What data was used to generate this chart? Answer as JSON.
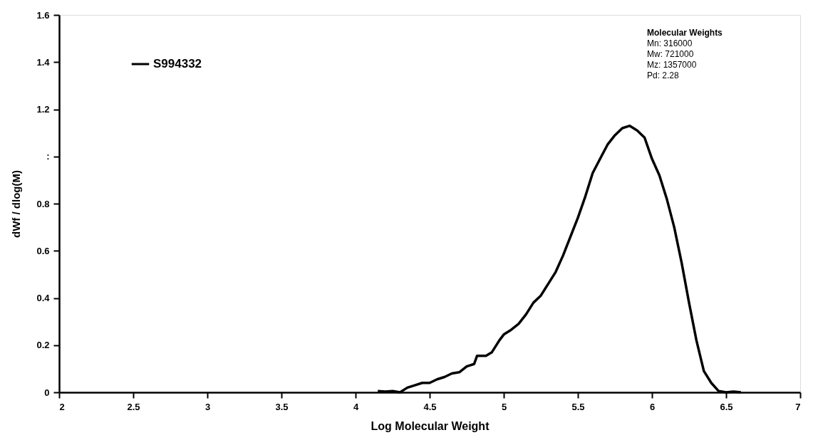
{
  "chart_data": {
    "type": "line",
    "xlabel": "Log Molecular Weight",
    "ylabel": "dWf / dlog(M)",
    "xlim": [
      2,
      7
    ],
    "xticks": [
      2,
      2.5,
      3,
      3.5,
      4,
      4.5,
      5,
      5.5,
      6,
      6.5,
      7
    ],
    "ylim": [
      0,
      1.6
    ],
    "yticks": [
      0,
      0.2,
      0.4,
      0.6,
      0.8,
      {
        "value": 1,
        "label": ":"
      },
      1.2,
      1.4,
      1.6
    ],
    "grid": false,
    "legend": "top left",
    "marker": "none",
    "line_style": "solid",
    "annotations": [
      "Molecular Weights",
      "Mn:  316000",
      "Mw:  721000",
      "Mz:  1357000",
      "Pd:   2.28"
    ],
    "x": [
      4.15,
      4.2,
      4.25,
      4.3,
      4.35,
      4.4,
      4.45,
      4.5,
      4.55,
      4.6,
      4.65,
      4.7,
      4.75,
      4.8,
      4.82,
      4.88,
      4.92,
      4.97,
      5.0,
      5.05,
      5.1,
      5.15,
      5.2,
      5.25,
      5.3,
      5.35,
      5.4,
      5.45,
      5.5,
      5.55,
      5.6,
      5.65,
      5.7,
      5.75,
      5.8,
      5.85,
      5.9,
      5.95,
      6.0,
      6.05,
      6.1,
      6.15,
      6.2,
      6.25,
      6.3,
      6.35,
      6.4,
      6.45,
      6.5,
      6.55,
      6.6
    ],
    "series": [
      {
        "name": "S994332",
        "color": "#000000",
        "values": [
          0.005,
          0.003,
          0.005,
          0.0,
          0.02,
          0.03,
          0.04,
          0.04,
          0.055,
          0.065,
          0.08,
          0.085,
          0.11,
          0.12,
          0.155,
          0.155,
          0.17,
          0.22,
          0.245,
          0.265,
          0.29,
          0.33,
          0.38,
          0.41,
          0.46,
          0.51,
          0.58,
          0.66,
          0.74,
          0.83,
          0.93,
          0.99,
          1.05,
          1.09,
          1.12,
          1.13,
          1.11,
          1.08,
          0.99,
          0.92,
          0.82,
          0.7,
          0.55,
          0.38,
          0.22,
          0.09,
          0.04,
          0.005,
          0.0,
          0.003,
          0.0
        ]
      }
    ]
  }
}
